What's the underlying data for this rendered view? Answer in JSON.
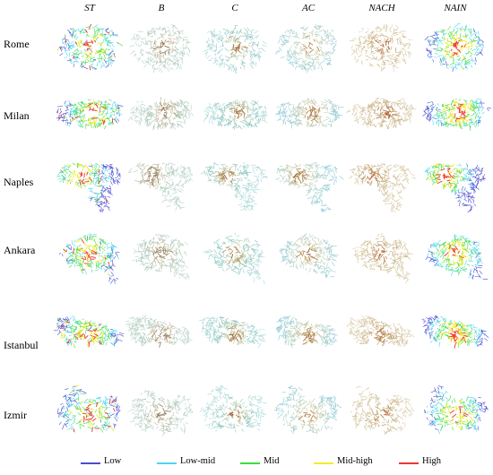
{
  "columns": [
    "ST",
    "B",
    "C",
    "AC",
    "NACH",
    "NAIN"
  ],
  "rows": [
    {
      "label": "Rome",
      "shape": "rome"
    },
    {
      "label": "Milan",
      "shape": "milan"
    },
    {
      "label": "Naples",
      "shape": "naples"
    },
    {
      "label": "Ankara",
      "shape": "ankara"
    },
    {
      "label": "Istanbul",
      "shape": "istanbul"
    },
    {
      "label": "Izmir",
      "shape": "izmir"
    }
  ],
  "legend": [
    {
      "label": "Low",
      "color": "#4b4bd2"
    },
    {
      "label": "Low-mid",
      "color": "#4fd6ef"
    },
    {
      "label": "Mid",
      "color": "#3ddc3d"
    },
    {
      "label": "Mid-high",
      "color": "#f2ea2e"
    },
    {
      "label": "High",
      "color": "#ee3434"
    }
  ],
  "column_palettes": {
    "ST": [
      "#4b4bd2",
      "#4fd6ef",
      "#3ddc3d",
      "#f2ea2e",
      "#ee3434"
    ],
    "B": [
      "#b9d3c8",
      "#a8c6b5",
      "#c0b69a",
      "#9e8a6a",
      "#8a6a3a"
    ],
    "C": [
      "#a9d6d6",
      "#8cc7c0",
      "#b8c7a6",
      "#b2915e",
      "#9a5c2a"
    ],
    "AC": [
      "#8fc9d4",
      "#b0cfc0",
      "#c9c39a",
      "#b48a52",
      "#9a5c2a"
    ],
    "NACH": [
      "#d7c8a4",
      "#cdb98c",
      "#c2a677",
      "#b8834f",
      "#c0552a"
    ],
    "NAIN": [
      "#4b4bd2",
      "#4fd6ef",
      "#3ddc3d",
      "#f2ea2e",
      "#ee3434"
    ]
  }
}
